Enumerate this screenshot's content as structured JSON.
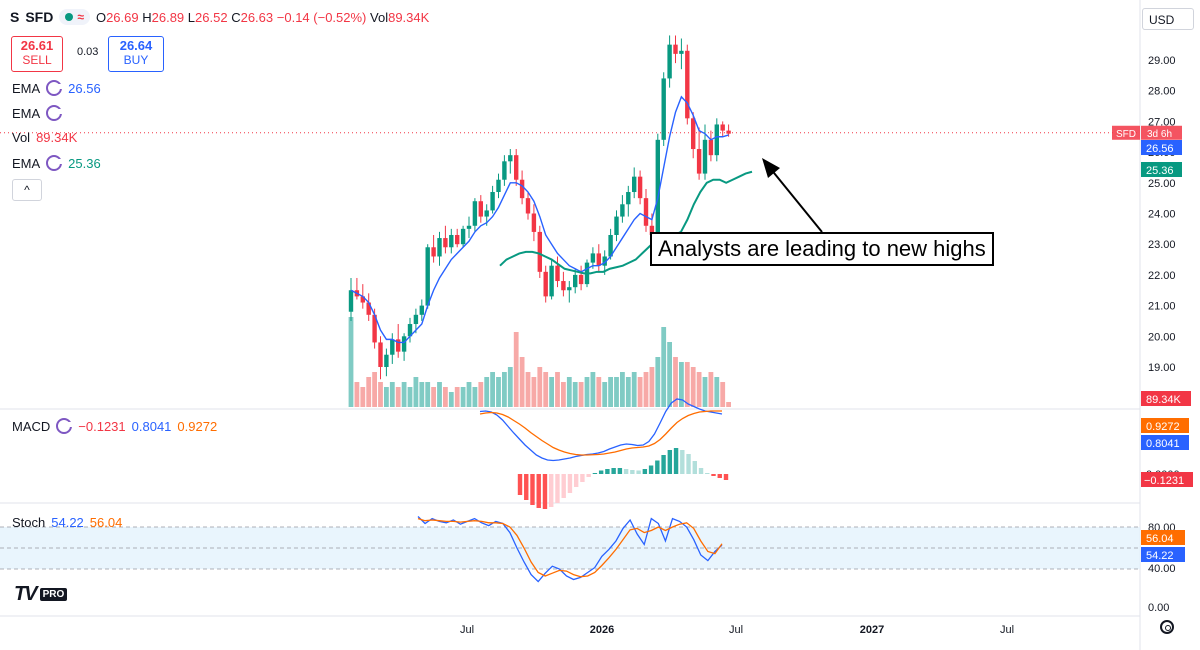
{
  "header": {
    "logo": "S",
    "symbol": "SFD",
    "wave": "≈",
    "open_label": "O",
    "open": "26.69",
    "high_label": "H",
    "high": "26.89",
    "low_label": "L",
    "low": "26.52",
    "close_label": "C",
    "close": "26.63",
    "change": "−0.14 (−0.52%)",
    "vol_label": "Vol",
    "vol": "89.34K"
  },
  "trade": {
    "sell_price": "26.61",
    "sell_label": "SELL",
    "spread": "0.03",
    "buy_price": "26.64",
    "buy_label": "BUY"
  },
  "indicators": {
    "ema1_label": "EMA",
    "ema1_value": "26.56",
    "ema2_label": "EMA",
    "vol_label": "Vol",
    "vol_value": "89.34K",
    "ema3_label": "EMA",
    "ema3_value": "25.36",
    "macd_label": "MACD",
    "macd_hist": "−0.1231",
    "macd_line": "0.8041",
    "macd_signal": "0.9272",
    "stoch_label": "Stoch",
    "stoch_k": "54.22",
    "stoch_d": "56.04"
  },
  "currency": "USD",
  "collapse_glyph": "^",
  "annotation": "Analysts are leading to new highs",
  "branding": {
    "mark": "TV",
    "pro": "PRO"
  },
  "colors": {
    "up": "#089981",
    "down": "#f23645",
    "ema_fast": "#2962ff",
    "ema_slow": "#089981",
    "macd": "#2962ff",
    "signal": "#ff6d00",
    "stoch_fill": "#e3f2fd"
  },
  "chart_data": {
    "type": "candlestick",
    "price_axis": {
      "ticks": [
        "29.00",
        "28.00",
        "27.00",
        "26.00",
        "25.00",
        "24.00",
        "23.00",
        "22.00",
        "21.00",
        "20.00",
        "19.00",
        "18.00"
      ],
      "range": [
        17.6,
        29.9
      ]
    },
    "x_axis": {
      "labels": [
        "Jul",
        "2026",
        "Jul",
        "2027",
        "Jul"
      ]
    },
    "candles": [
      [
        20.8,
        21.9,
        20.5,
        21.5
      ],
      [
        21.5,
        21.9,
        21.2,
        21.3
      ],
      [
        21.3,
        21.7,
        20.9,
        21.1
      ],
      [
        21.1,
        21.4,
        20.5,
        20.7
      ],
      [
        20.7,
        20.9,
        19.6,
        19.8
      ],
      [
        19.8,
        20.0,
        18.6,
        19.0
      ],
      [
        19.0,
        19.6,
        18.7,
        19.4
      ],
      [
        19.4,
        20.1,
        19.1,
        19.9
      ],
      [
        19.9,
        20.4,
        19.3,
        19.5
      ],
      [
        19.5,
        20.1,
        19.2,
        20.0
      ],
      [
        20.0,
        20.6,
        19.8,
        20.4
      ],
      [
        20.4,
        20.9,
        20.1,
        20.7
      ],
      [
        20.7,
        21.2,
        20.5,
        21.0
      ],
      [
        21.0,
        23.0,
        20.9,
        22.9
      ],
      [
        22.9,
        23.3,
        22.4,
        22.6
      ],
      [
        22.6,
        23.4,
        22.3,
        23.2
      ],
      [
        23.2,
        23.6,
        22.7,
        22.9
      ],
      [
        22.9,
        23.5,
        22.7,
        23.3
      ],
      [
        23.3,
        23.5,
        22.9,
        23.0
      ],
      [
        23.0,
        23.6,
        22.9,
        23.5
      ],
      [
        23.5,
        23.9,
        23.2,
        23.6
      ],
      [
        23.6,
        24.5,
        23.4,
        24.4
      ],
      [
        24.4,
        24.6,
        23.7,
        23.9
      ],
      [
        23.9,
        24.3,
        23.6,
        24.1
      ],
      [
        24.1,
        24.9,
        24.0,
        24.7
      ],
      [
        24.7,
        25.3,
        24.5,
        25.1
      ],
      [
        25.1,
        25.9,
        24.9,
        25.7
      ],
      [
        25.7,
        26.1,
        25.3,
        25.9
      ],
      [
        25.9,
        26.1,
        24.9,
        25.1
      ],
      [
        25.1,
        25.4,
        24.3,
        24.5
      ],
      [
        24.5,
        24.7,
        23.8,
        24.0
      ],
      [
        24.0,
        24.3,
        23.1,
        23.4
      ],
      [
        23.4,
        23.6,
        21.9,
        22.1
      ],
      [
        22.1,
        22.3,
        21.1,
        21.3
      ],
      [
        21.3,
        22.5,
        21.2,
        22.3
      ],
      [
        22.3,
        22.6,
        21.6,
        21.8
      ],
      [
        21.8,
        22.1,
        21.3,
        21.5
      ],
      [
        21.5,
        21.8,
        21.1,
        21.6
      ],
      [
        21.6,
        22.2,
        21.4,
        22.0
      ],
      [
        22.0,
        22.3,
        21.5,
        21.7
      ],
      [
        21.7,
        22.5,
        21.6,
        22.4
      ],
      [
        22.4,
        22.9,
        22.2,
        22.7
      ],
      [
        22.7,
        23.0,
        22.1,
        22.3
      ],
      [
        22.3,
        22.8,
        22.0,
        22.6
      ],
      [
        22.6,
        23.5,
        22.5,
        23.3
      ],
      [
        23.3,
        24.1,
        23.1,
        23.9
      ],
      [
        23.9,
        24.6,
        23.7,
        24.3
      ],
      [
        24.3,
        24.9,
        23.9,
        24.7
      ],
      [
        24.7,
        25.5,
        24.5,
        25.2
      ],
      [
        25.2,
        25.4,
        24.3,
        24.5
      ],
      [
        24.5,
        24.8,
        23.4,
        23.6
      ],
      [
        23.6,
        24.0,
        23.1,
        23.3
      ],
      [
        23.3,
        26.6,
        23.2,
        26.4
      ],
      [
        26.4,
        28.6,
        26.2,
        28.4
      ],
      [
        28.4,
        29.8,
        28.1,
        29.5
      ],
      [
        29.5,
        29.8,
        28.9,
        29.2
      ],
      [
        29.2,
        29.7,
        28.7,
        29.3
      ],
      [
        29.3,
        29.5,
        26.9,
        27.1
      ],
      [
        27.1,
        27.3,
        25.8,
        26.1
      ],
      [
        26.1,
        26.8,
        25.1,
        25.3
      ],
      [
        25.3,
        26.9,
        25.1,
        26.4
      ],
      [
        26.4,
        26.7,
        25.7,
        25.9
      ],
      [
        25.9,
        27.1,
        25.7,
        26.9
      ],
      [
        26.9,
        27.0,
        26.5,
        26.7
      ],
      [
        26.7,
        26.9,
        26.5,
        26.6
      ]
    ],
    "ema_fast": [
      21.5,
      21.4,
      21.3,
      21.1,
      20.7,
      20.2,
      19.9,
      19.9,
      19.8,
      19.8,
      20.0,
      20.2,
      20.4,
      21.0,
      21.5,
      21.9,
      22.2,
      22.5,
      22.7,
      22.9,
      23.1,
      23.4,
      23.6,
      23.7,
      23.9,
      24.2,
      24.6,
      25.0,
      25.0,
      24.9,
      24.7,
      24.4,
      23.9,
      23.3,
      23.0,
      22.7,
      22.5,
      22.3,
      22.2,
      22.1,
      22.2,
      22.3,
      22.3,
      22.4,
      22.6,
      22.9,
      23.2,
      23.5,
      23.8,
      24.0,
      23.9,
      23.8,
      24.5,
      25.5,
      26.5,
      27.3,
      27.8,
      27.6,
      27.2,
      26.7,
      26.6,
      26.4,
      26.5,
      26.5,
      26.56
    ],
    "ema_slow_start_index": 24,
    "ema_slow": [
      22.3,
      22.5,
      22.6,
      22.7,
      22.75,
      22.75,
      22.7,
      22.6,
      22.5,
      22.35,
      22.2,
      22.15,
      22.1,
      22.05,
      22.05,
      22.1,
      22.1,
      22.2,
      22.25,
      22.3,
      22.4,
      22.5,
      22.7,
      22.9,
      23.1,
      23.2,
      23.3,
      23.3,
      23.4,
      23.8,
      24.3,
      24.7,
      25.0,
      25.1,
      25.1,
      25.0,
      25.1,
      25.2,
      25.3,
      25.36
    ],
    "volume": [
      0.9,
      0.25,
      0.2,
      0.3,
      0.35,
      0.25,
      0.2,
      0.25,
      0.2,
      0.25,
      0.2,
      0.3,
      0.25,
      0.25,
      0.2,
      0.25,
      0.2,
      0.15,
      0.2,
      0.2,
      0.25,
      0.2,
      0.25,
      0.3,
      0.35,
      0.3,
      0.35,
      0.4,
      0.75,
      0.5,
      0.35,
      0.3,
      0.4,
      0.35,
      0.3,
      0.35,
      0.25,
      0.3,
      0.25,
      0.25,
      0.3,
      0.35,
      0.3,
      0.25,
      0.3,
      0.3,
      0.35,
      0.3,
      0.35,
      0.3,
      0.35,
      0.4,
      0.5,
      0.8,
      0.65,
      0.5,
      0.45,
      0.45,
      0.4,
      0.35,
      0.3,
      0.35,
      0.3,
      0.25,
      0.05
    ],
    "volume_label": "89.34K",
    "ema_fast_label": "26.56",
    "ema_slow_label": "25.36",
    "price_tag_symbol": "SFD",
    "price_tag_time": "3d 6h",
    "macd": {
      "hist_label": "−0.1231",
      "line_label": "0.8041",
      "signal_label": "0.9272",
      "zero_label": "0.0000",
      "line": [
        0.85,
        0.86,
        0.84,
        0.78,
        0.68,
        0.55,
        0.42,
        0.3,
        0.18,
        0.08,
        -0.02,
        -0.08,
        -0.12,
        -0.13,
        -0.12,
        -0.1,
        -0.08,
        -0.05,
        -0.03,
        -0.01,
        0.0,
        0.02,
        0.05,
        0.1,
        0.14,
        0.18,
        0.2,
        0.19,
        0.17,
        0.18,
        0.25,
        0.4,
        0.62,
        0.85,
        1.02,
        1.1,
        1.08,
        1.0,
        0.95,
        0.9,
        0.86,
        0.84,
        0.82,
        0.8
      ],
      "signal": [
        0.8,
        0.82,
        0.83,
        0.82,
        0.79,
        0.74,
        0.67,
        0.6,
        0.52,
        0.43,
        0.35,
        0.27,
        0.2,
        0.13,
        0.08,
        0.04,
        0.01,
        -0.01,
        -0.02,
        -0.02,
        -0.015,
        -0.01,
        0.0,
        0.02,
        0.04,
        0.07,
        0.1,
        0.12,
        0.13,
        0.14,
        0.16,
        0.21,
        0.29,
        0.4,
        0.52,
        0.63,
        0.71,
        0.77,
        0.81,
        0.84,
        0.85,
        0.86,
        0.86,
        0.86
      ],
      "hist": [
        -0.42,
        -0.52,
        -0.62,
        -0.68,
        -0.7,
        -0.66,
        -0.58,
        -0.48,
        -0.38,
        -0.26,
        -0.16,
        -0.06,
        0.02,
        0.07,
        0.1,
        0.12,
        0.12,
        0.1,
        0.08,
        0.07,
        0.1,
        0.17,
        0.27,
        0.38,
        0.48,
        0.52,
        0.48,
        0.4,
        0.26,
        0.12,
        0.02,
        -0.04,
        -0.08,
        -0.12
      ]
    },
    "stoch": {
      "ticks": [
        "80.00",
        "40.00",
        "0.00"
      ],
      "k_label": "54.22",
      "d_label": "56.04",
      "k": [
        95,
        85,
        92,
        88,
        86,
        90,
        84,
        88,
        92,
        86,
        82,
        88,
        85,
        72,
        50,
        30,
        12,
        2,
        14,
        24,
        20,
        10,
        5,
        8,
        15,
        22,
        38,
        48,
        60,
        78,
        90,
        70,
        55,
        92,
        85,
        60,
        92,
        88,
        80,
        62,
        40,
        32,
        45,
        54
      ],
      "d": [
        92,
        89,
        90,
        89,
        88,
        88,
        87,
        88,
        89,
        88,
        86,
        86,
        85,
        80,
        68,
        50,
        30,
        15,
        10,
        14,
        18,
        17,
        12,
        9,
        10,
        15,
        25,
        36,
        48,
        62,
        76,
        78,
        72,
        75,
        80,
        75,
        80,
        84,
        86,
        78,
        60,
        45,
        42,
        56
      ]
    }
  }
}
